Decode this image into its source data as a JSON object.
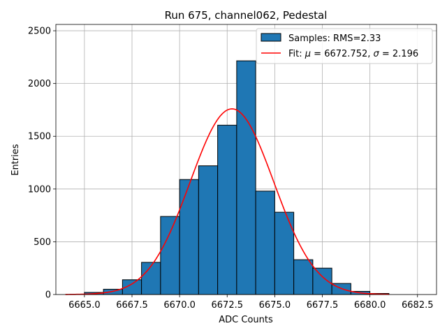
{
  "chart_data": {
    "type": "bar",
    "title": "Run 675, channel062, Pedestal",
    "xlabel": "ADC Counts",
    "ylabel": "Entries",
    "xlim": [
      6663.5,
      6683.5
    ],
    "ylim": [
      0,
      2560
    ],
    "xticks": [
      6665.0,
      6667.5,
      6670.0,
      6672.5,
      6675.0,
      6677.5,
      6680.0,
      6682.5
    ],
    "xtick_labels": [
      "6665.0",
      "6667.5",
      "6670.0",
      "6672.5",
      "6675.0",
      "6677.5",
      "6680.0",
      "6682.5"
    ],
    "yticks": [
      0,
      500,
      1000,
      1500,
      2000,
      2500
    ],
    "ytick_labels": [
      "0",
      "500",
      "1000",
      "1500",
      "2000",
      "2500"
    ],
    "grid": true,
    "legend_position": "top-right",
    "histogram": {
      "name": "Samples: RMS=2.33",
      "color": "#1f77b4",
      "edge_color": "#000000",
      "bin_edges": [
        6665,
        6666,
        6667,
        6668,
        6669,
        6670,
        6671,
        6672,
        6673,
        6674,
        6675,
        6676,
        6677,
        6678,
        6679,
        6680,
        6681
      ],
      "values": [
        20,
        50,
        140,
        305,
        740,
        1090,
        1220,
        1605,
        2215,
        980,
        780,
        330,
        250,
        105,
        30,
        10
      ]
    },
    "fit": {
      "name": "Fit: μ = 6672.752, σ = 2.196",
      "label_parts": [
        "Fit: ",
        "μ",
        " = 6672.752, ",
        "σ",
        " = 2.196"
      ],
      "color": "#ff0000",
      "mu": 6672.752,
      "sigma": 2.196,
      "amplitude": 1760,
      "x_range": [
        6664,
        6681
      ]
    }
  }
}
